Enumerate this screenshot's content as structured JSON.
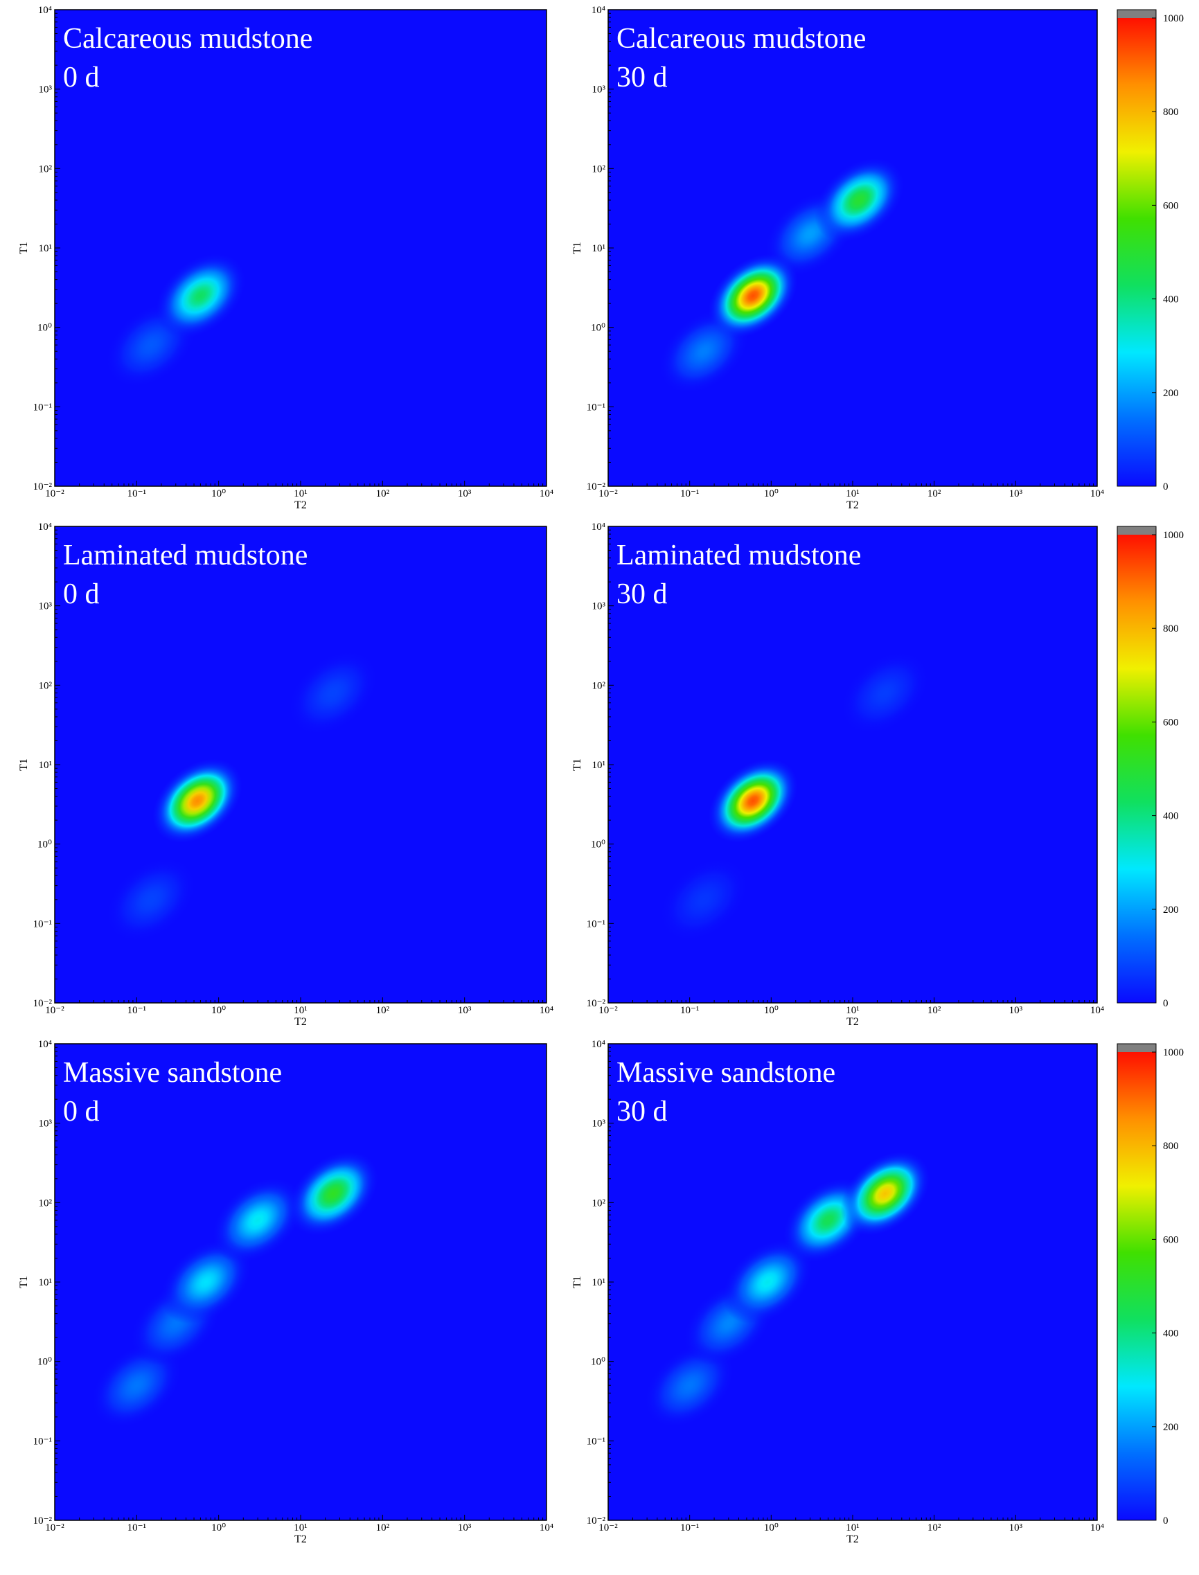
{
  "chart_data": [
    {
      "type": "heatmap",
      "title": [
        "Calcareous mudstone",
        "0 d"
      ],
      "xlabel": "T2",
      "ylabel": "T1",
      "log_scale": true,
      "xlim": [
        0.01,
        10000
      ],
      "ylim": [
        0.01,
        10000
      ],
      "xticks": [
        {
          "value": 0.01,
          "label": "10⁻²"
        },
        {
          "value": 0.1,
          "label": "10⁻¹"
        },
        {
          "value": 1,
          "label": "10⁰"
        },
        {
          "value": 10,
          "label": "10¹"
        },
        {
          "value": 100,
          "label": "10²"
        },
        {
          "value": 1000,
          "label": "10³"
        },
        {
          "value": 10000,
          "label": "10⁴"
        }
      ],
      "yticks": [
        {
          "value": 0.01,
          "label": "10⁻²"
        },
        {
          "value": 0.1,
          "label": "10⁻¹"
        },
        {
          "value": 1,
          "label": "10⁰"
        },
        {
          "value": 10,
          "label": "10¹"
        },
        {
          "value": 100,
          "label": "10²"
        },
        {
          "value": 1000,
          "label": "10³"
        },
        {
          "value": 10000,
          "label": "10⁴"
        }
      ],
      "zlim": [
        0,
        1000
      ],
      "colormap": [
        "#0a0aff",
        "#0070ff",
        "#00e8ff",
        "#10e060",
        "#40e000",
        "#f0f000",
        "#ff9000",
        "#ff1000"
      ],
      "peaks": [
        {
          "t2": 0.15,
          "t1": 0.6,
          "value": 110
        },
        {
          "t2": 0.6,
          "t1": 2.5,
          "value": 430
        }
      ]
    },
    {
      "type": "heatmap",
      "title": [
        "Calcareous mudstone",
        "30 d"
      ],
      "xlabel": "T2",
      "ylabel": "T1",
      "log_scale": true,
      "xlim": [
        0.01,
        10000
      ],
      "ylim": [
        0.01,
        10000
      ],
      "xticks": [
        {
          "value": 0.01,
          "label": "10⁻²"
        },
        {
          "value": 0.1,
          "label": "10⁻¹"
        },
        {
          "value": 1,
          "label": "10⁰"
        },
        {
          "value": 10,
          "label": "10¹"
        },
        {
          "value": 100,
          "label": "10²"
        },
        {
          "value": 1000,
          "label": "10³"
        },
        {
          "value": 10000,
          "label": "10⁴"
        }
      ],
      "yticks": [
        {
          "value": 0.01,
          "label": "10⁻²"
        },
        {
          "value": 0.1,
          "label": "10⁻¹"
        },
        {
          "value": 1,
          "label": "10⁰"
        },
        {
          "value": 10,
          "label": "10¹"
        },
        {
          "value": 100,
          "label": "10²"
        },
        {
          "value": 1000,
          "label": "10³"
        },
        {
          "value": 10000,
          "label": "10⁴"
        }
      ],
      "zlim": [
        0,
        1000
      ],
      "colormap": [
        "#0a0aff",
        "#0070ff",
        "#00e8ff",
        "#10e060",
        "#40e000",
        "#f0f000",
        "#ff9000",
        "#ff1000"
      ],
      "colorbar": {
        "lim": [
          0,
          1000
        ],
        "ticks": [
          0,
          200,
          400,
          600,
          800,
          1000
        ]
      },
      "peaks": [
        {
          "t2": 0.15,
          "t1": 0.5,
          "value": 160
        },
        {
          "t2": 3,
          "t1": 15,
          "value": 200
        },
        {
          "t2": 12,
          "t1": 40,
          "value": 500
        },
        {
          "t2": 0.6,
          "t1": 2.5,
          "value": 930
        }
      ]
    },
    {
      "type": "heatmap",
      "title": [
        "Laminated mudstone",
        "0 d"
      ],
      "xlabel": "T2",
      "ylabel": "T1",
      "log_scale": true,
      "xlim": [
        0.01,
        10000
      ],
      "ylim": [
        0.01,
        10000
      ],
      "xticks": [
        {
          "value": 0.01,
          "label": "10⁻²"
        },
        {
          "value": 0.1,
          "label": "10⁻¹"
        },
        {
          "value": 1,
          "label": "10⁰"
        },
        {
          "value": 10,
          "label": "10¹"
        },
        {
          "value": 100,
          "label": "10²"
        },
        {
          "value": 1000,
          "label": "10³"
        },
        {
          "value": 10000,
          "label": "10⁴"
        }
      ],
      "yticks": [
        {
          "value": 0.01,
          "label": "10⁻²"
        },
        {
          "value": 0.1,
          "label": "10⁻¹"
        },
        {
          "value": 1,
          "label": "10⁰"
        },
        {
          "value": 10,
          "label": "10¹"
        },
        {
          "value": 100,
          "label": "10²"
        },
        {
          "value": 1000,
          "label": "10³"
        },
        {
          "value": 10000,
          "label": "10⁴"
        }
      ],
      "zlim": [
        0,
        1000
      ],
      "colormap": [
        "#0a0aff",
        "#0070ff",
        "#00e8ff",
        "#10e060",
        "#40e000",
        "#f0f000",
        "#ff9000",
        "#ff1000"
      ],
      "peaks": [
        {
          "t2": 0.15,
          "t1": 0.2,
          "value": 80
        },
        {
          "t2": 25,
          "t1": 80,
          "value": 80
        },
        {
          "t2": 0.55,
          "t1": 3.5,
          "value": 860
        }
      ]
    },
    {
      "type": "heatmap",
      "title": [
        "Laminated mudstone",
        "30 d"
      ],
      "xlabel": "T2",
      "ylabel": "T1",
      "log_scale": true,
      "xlim": [
        0.01,
        10000
      ],
      "ylim": [
        0.01,
        10000
      ],
      "xticks": [
        {
          "value": 0.01,
          "label": "10⁻²"
        },
        {
          "value": 0.1,
          "label": "10⁻¹"
        },
        {
          "value": 1,
          "label": "10⁰"
        },
        {
          "value": 10,
          "label": "10¹"
        },
        {
          "value": 100,
          "label": "10²"
        },
        {
          "value": 1000,
          "label": "10³"
        },
        {
          "value": 10000,
          "label": "10⁴"
        }
      ],
      "yticks": [
        {
          "value": 0.01,
          "label": "10⁻²"
        },
        {
          "value": 0.1,
          "label": "10⁻¹"
        },
        {
          "value": 1,
          "label": "10⁰"
        },
        {
          "value": 10,
          "label": "10¹"
        },
        {
          "value": 100,
          "label": "10²"
        },
        {
          "value": 1000,
          "label": "10³"
        },
        {
          "value": 10000,
          "label": "10⁴"
        }
      ],
      "zlim": [
        0,
        1000
      ],
      "colormap": [
        "#0a0aff",
        "#0070ff",
        "#00e8ff",
        "#10e060",
        "#40e000",
        "#f0f000",
        "#ff9000",
        "#ff1000"
      ],
      "colorbar": {
        "lim": [
          0,
          1000
        ],
        "ticks": [
          0,
          200,
          400,
          600,
          800,
          1000
        ]
      },
      "peaks": [
        {
          "t2": 0.15,
          "t1": 0.2,
          "value": 60
        },
        {
          "t2": 25,
          "t1": 80,
          "value": 70
        },
        {
          "t2": 0.6,
          "t1": 3.5,
          "value": 930
        }
      ]
    },
    {
      "type": "heatmap",
      "title": [
        "Massive sandstone",
        "0 d"
      ],
      "xlabel": "T2",
      "ylabel": "T1",
      "log_scale": true,
      "xlim": [
        0.01,
        10000
      ],
      "ylim": [
        0.01,
        10000
      ],
      "xticks": [
        {
          "value": 0.01,
          "label": "10⁻²"
        },
        {
          "value": 0.1,
          "label": "10⁻¹"
        },
        {
          "value": 1,
          "label": "10⁰"
        },
        {
          "value": 10,
          "label": "10¹"
        },
        {
          "value": 100,
          "label": "10²"
        },
        {
          "value": 1000,
          "label": "10³"
        },
        {
          "value": 10000,
          "label": "10⁴"
        }
      ],
      "yticks": [
        {
          "value": 0.01,
          "label": "10⁻²"
        },
        {
          "value": 0.1,
          "label": "10⁻¹"
        },
        {
          "value": 1,
          "label": "10⁰"
        },
        {
          "value": 10,
          "label": "10¹"
        },
        {
          "value": 100,
          "label": "10²"
        },
        {
          "value": 1000,
          "label": "10³"
        },
        {
          "value": 10000,
          "label": "10⁴"
        }
      ],
      "zlim": [
        0,
        1000
      ],
      "colormap": [
        "#0a0aff",
        "#0070ff",
        "#00e8ff",
        "#10e060",
        "#40e000",
        "#f0f000",
        "#ff9000",
        "#ff1000"
      ],
      "peaks": [
        {
          "t2": 0.1,
          "t1": 0.5,
          "value": 150
        },
        {
          "t2": 0.3,
          "t1": 3,
          "value": 150
        },
        {
          "t2": 0.7,
          "t1": 10,
          "value": 280
        },
        {
          "t2": 3,
          "t1": 60,
          "value": 300
        },
        {
          "t2": 25,
          "t1": 130,
          "value": 520
        }
      ]
    },
    {
      "type": "heatmap",
      "title": [
        "Massive sandstone",
        "30 d"
      ],
      "xlabel": "T2",
      "ylabel": "T1",
      "log_scale": true,
      "xlim": [
        0.01,
        10000
      ],
      "ylim": [
        0.01,
        10000
      ],
      "xticks": [
        {
          "value": 0.01,
          "label": "10⁻²"
        },
        {
          "value": 0.1,
          "label": "10⁻¹"
        },
        {
          "value": 1,
          "label": "10⁰"
        },
        {
          "value": 10,
          "label": "10¹"
        },
        {
          "value": 100,
          "label": "10²"
        },
        {
          "value": 1000,
          "label": "10³"
        },
        {
          "value": 10000,
          "label": "10⁴"
        }
      ],
      "yticks": [
        {
          "value": 0.01,
          "label": "10⁻²"
        },
        {
          "value": 0.1,
          "label": "10⁻¹"
        },
        {
          "value": 1,
          "label": "10⁰"
        },
        {
          "value": 10,
          "label": "10¹"
        },
        {
          "value": 100,
          "label": "10²"
        },
        {
          "value": 1000,
          "label": "10³"
        },
        {
          "value": 10000,
          "label": "10⁴"
        }
      ],
      "zlim": [
        0,
        1000
      ],
      "colormap": [
        "#0a0aff",
        "#0070ff",
        "#00e8ff",
        "#10e060",
        "#40e000",
        "#f0f000",
        "#ff9000",
        "#ff1000"
      ],
      "colorbar": {
        "lim": [
          0,
          1000
        ],
        "ticks": [
          0,
          200,
          400,
          600,
          800,
          1000
        ]
      },
      "peaks": [
        {
          "t2": 0.1,
          "t1": 0.5,
          "value": 150
        },
        {
          "t2": 0.3,
          "t1": 3,
          "value": 170
        },
        {
          "t2": 0.9,
          "t1": 10,
          "value": 300
        },
        {
          "t2": 5,
          "t1": 60,
          "value": 450
        },
        {
          "t2": 25,
          "t1": 130,
          "value": 780
        }
      ]
    }
  ]
}
